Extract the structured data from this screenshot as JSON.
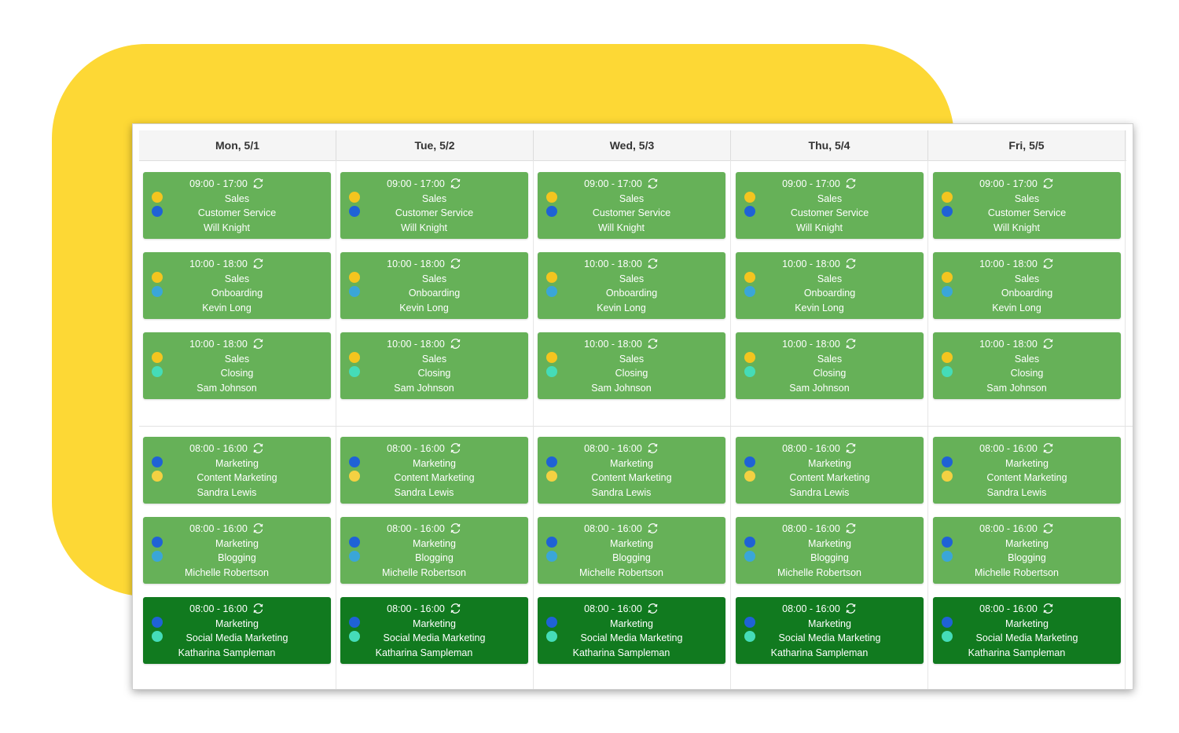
{
  "colors": {
    "background_accent": "#fdd835",
    "shift_default": "#66b158",
    "shift_highlight": "#117a1f",
    "dot_yellow": "#f4c51f",
    "dot_blue": "#1f62d6",
    "dot_light_blue": "#3aa6d8",
    "dot_teal": "#45dcb8"
  },
  "icons": {
    "recurring": "recurring-icon"
  },
  "days": [
    {
      "label": "Mon, 5/1"
    },
    {
      "label": "Tue, 5/2"
    },
    {
      "label": "Wed, 5/3"
    },
    {
      "label": "Thu, 5/4"
    },
    {
      "label": "Fri, 5/5"
    }
  ],
  "groups": [
    {
      "shifts": [
        {
          "time": "09:00 - 17:00",
          "department": "Sales",
          "role": "Customer Service",
          "employee": "Will Knight",
          "dots": [
            "#f4c51f",
            "#1f62d6"
          ],
          "highlight": false
        },
        {
          "time": "10:00 - 18:00",
          "department": "Sales",
          "role": "Onboarding",
          "employee": "Kevin Long",
          "dots": [
            "#f4c51f",
            "#3aa6d8"
          ],
          "highlight": false
        },
        {
          "time": "10:00 - 18:00",
          "department": "Sales",
          "role": "Closing",
          "employee": "Sam Johnson",
          "dots": [
            "#f4c51f",
            "#45dcb8"
          ],
          "highlight": false
        }
      ]
    },
    {
      "shifts": [
        {
          "time": "08:00 - 16:00",
          "department": "Marketing",
          "role": "Content Marketing",
          "employee": "Sandra Lewis",
          "dots": [
            "#1f62d6",
            "#f4d142"
          ],
          "highlight": false
        },
        {
          "time": "08:00 - 16:00",
          "department": "Marketing",
          "role": "Blogging",
          "employee": "Michelle Robertson",
          "dots": [
            "#1f62d6",
            "#3aa6d8"
          ],
          "highlight": false
        },
        {
          "time": "08:00 - 16:00",
          "department": "Marketing",
          "role": "Social Media Marketing",
          "employee": "Katharina Sampleman",
          "dots": [
            "#1f62d6",
            "#45dcb8"
          ],
          "highlight": true
        }
      ]
    }
  ]
}
